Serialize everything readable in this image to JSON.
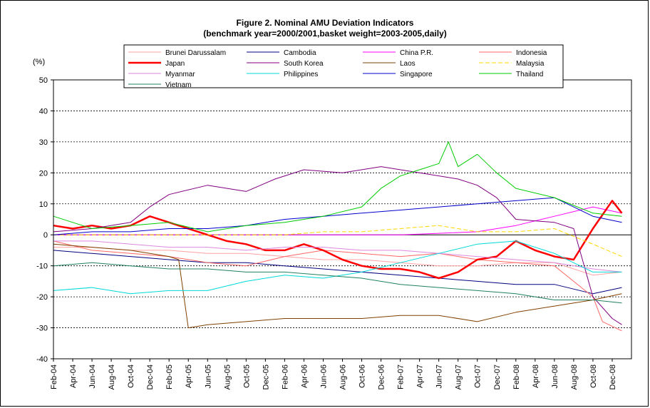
{
  "chart_data": {
    "type": "line",
    "title": "Figure 2. Nominal AMU Deviation Indicators",
    "subtitle": "(benchmark year=2000/2001,basket weight=2003-2005,daily)",
    "ylabel": "(%)",
    "xlabel": "",
    "ylim": [
      -40,
      50
    ],
    "yticks": [
      50,
      40,
      30,
      20,
      10,
      0,
      -10,
      -20,
      -30,
      -40
    ],
    "xlim": [
      "2004-02",
      "2009-02"
    ],
    "xticks": [
      "Feb-04",
      "Apr-04",
      "Jun-04",
      "Aug-04",
      "Oct-04",
      "Dec-04",
      "Feb-05",
      "Apr-05",
      "Jun-05",
      "Aug-05",
      "Oct-05",
      "Dec-05",
      "Feb-06",
      "Apr-06",
      "Jun-06",
      "Aug-06",
      "Oct-06",
      "Dec-06",
      "Feb-07",
      "Apr-07",
      "Jun-07",
      "Aug-07",
      "Oct-07",
      "Dec-07",
      "Feb-08",
      "Apr-08",
      "Jun-08",
      "Aug-08",
      "Oct-08",
      "Dec-08"
    ],
    "grid": "horizontal dotted",
    "legend_position": "top",
    "series": [
      {
        "name": "Brunei Darussalam",
        "color": "#ffa0a0",
        "width": 1,
        "dash": "",
        "x": [
          "2004-02",
          "2004-06",
          "2004-10",
          "2005-02",
          "2005-06",
          "2005-10",
          "2006-02",
          "2006-06",
          "2006-10",
          "2007-02",
          "2007-06",
          "2007-10",
          "2008-02",
          "2008-06",
          "2008-10",
          "2009-01"
        ],
        "y": [
          -4,
          -4,
          -5,
          -5,
          -6,
          -6,
          -7,
          -8,
          -8,
          -9,
          -10,
          -10,
          -9,
          -9,
          -13,
          -12
        ]
      },
      {
        "name": "Cambodia",
        "color": "#000080",
        "width": 1,
        "dash": "",
        "x": [
          "2004-02",
          "2004-06",
          "2004-10",
          "2005-02",
          "2005-06",
          "2005-10",
          "2006-02",
          "2006-06",
          "2006-10",
          "2007-02",
          "2007-06",
          "2007-10",
          "2008-02",
          "2008-06",
          "2008-10",
          "2009-01"
        ],
        "y": [
          -5,
          -6,
          -7,
          -8,
          -9,
          -9,
          -10,
          -11,
          -12,
          -13,
          -14,
          -15,
          -16,
          -16,
          -19,
          -17
        ]
      },
      {
        "name": "China P.R.",
        "color": "#ff00ff",
        "width": 1,
        "dash": "",
        "x": [
          "2004-02",
          "2004-06",
          "2004-10",
          "2005-02",
          "2005-06",
          "2005-10",
          "2006-02",
          "2006-06",
          "2006-10",
          "2007-02",
          "2007-06",
          "2007-10",
          "2008-02",
          "2008-06",
          "2008-10",
          "2009-01"
        ],
        "y": [
          0,
          0,
          0,
          0,
          0,
          0,
          0,
          0,
          0,
          0,
          0.5,
          1,
          3,
          6,
          9,
          7
        ]
      },
      {
        "name": "Indonesia",
        "color": "#ff6666",
        "width": 1,
        "dash": "",
        "x": [
          "2004-02",
          "2004-06",
          "2004-10",
          "2005-02",
          "2005-06",
          "2005-10",
          "2006-02",
          "2006-06",
          "2006-10",
          "2007-02",
          "2007-06",
          "2007-10",
          "2008-02",
          "2008-06",
          "2008-10",
          "2008-11",
          "2009-01"
        ],
        "y": [
          -2,
          -5,
          -6,
          -7,
          -9,
          -10,
          -7,
          -5,
          -6,
          -7,
          -6,
          -8,
          -9,
          -10,
          -20,
          -28,
          -31
        ]
      },
      {
        "name": "Japan",
        "color": "#ff0000",
        "width": 2.5,
        "dash": "",
        "x": [
          "2004-02",
          "2004-04",
          "2004-06",
          "2004-08",
          "2004-10",
          "2004-12",
          "2005-02",
          "2005-04",
          "2005-06",
          "2005-08",
          "2005-10",
          "2005-12",
          "2006-02",
          "2006-04",
          "2006-06",
          "2006-08",
          "2006-10",
          "2006-12",
          "2007-02",
          "2007-04",
          "2007-06",
          "2007-08",
          "2007-10",
          "2007-12",
          "2008-02",
          "2008-04",
          "2008-06",
          "2008-08",
          "2008-10",
          "2008-12",
          "2009-01"
        ],
        "y": [
          3,
          2,
          3,
          2,
          3,
          6,
          4,
          2,
          0,
          -2,
          -3,
          -5,
          -5,
          -3,
          -5,
          -8,
          -10,
          -11,
          -11,
          -12,
          -14,
          -12,
          -8,
          -7,
          -2,
          -5,
          -7,
          -8,
          2,
          11,
          7
        ]
      },
      {
        "name": "South Korea",
        "color": "#800080",
        "width": 1,
        "dash": "",
        "x": [
          "2004-02",
          "2004-06",
          "2004-10",
          "2004-12",
          "2005-02",
          "2005-06",
          "2005-10",
          "2006-01",
          "2006-04",
          "2006-08",
          "2006-12",
          "2007-04",
          "2007-08",
          "2007-10",
          "2007-12",
          "2008-02",
          "2008-06",
          "2008-08",
          "2008-10",
          "2008-12",
          "2009-01"
        ],
        "y": [
          1,
          2,
          4,
          9,
          13,
          16,
          14,
          18,
          21,
          20,
          22,
          20,
          18,
          16,
          12,
          5,
          4,
          2,
          -20,
          -27,
          -29
        ]
      },
      {
        "name": "Laos",
        "color": "#804000",
        "width": 1,
        "dash": "",
        "x": [
          "2004-02",
          "2004-06",
          "2004-10",
          "2005-02",
          "2005-03",
          "2005-04",
          "2005-06",
          "2005-10",
          "2006-02",
          "2006-06",
          "2006-10",
          "2007-02",
          "2007-06",
          "2007-10",
          "2008-02",
          "2008-06",
          "2008-10",
          "2009-01"
        ],
        "y": [
          -3,
          -4,
          -5,
          -7,
          -8,
          -30,
          -29,
          -28,
          -27,
          -27,
          -27,
          -26,
          -26,
          -28,
          -25,
          -23,
          -21,
          -19
        ]
      },
      {
        "name": "Malaysia",
        "color": "#ffd700",
        "width": 1,
        "dash": "6,3",
        "x": [
          "2004-02",
          "2004-06",
          "2004-10",
          "2005-02",
          "2005-06",
          "2005-10",
          "2006-02",
          "2006-06",
          "2006-10",
          "2007-02",
          "2007-06",
          "2007-10",
          "2008-02",
          "2008-06",
          "2008-10",
          "2009-01"
        ],
        "y": [
          0,
          0,
          0,
          0,
          0,
          0,
          0,
          1,
          1,
          2,
          3,
          1,
          1,
          2,
          -3,
          -7
        ]
      },
      {
        "name": "Myanmar",
        "color": "#dd88dd",
        "width": 1,
        "dash": "",
        "x": [
          "2004-02",
          "2004-06",
          "2004-10",
          "2005-02",
          "2005-06",
          "2005-10",
          "2006-02",
          "2006-06",
          "2006-10",
          "2007-02",
          "2007-06",
          "2007-10",
          "2008-02",
          "2008-06",
          "2008-10",
          "2009-01"
        ],
        "y": [
          -2,
          -2,
          -3,
          -4,
          -4,
          -5,
          -4,
          -4,
          -5,
          -5,
          -6,
          -7,
          -8,
          -9,
          -11,
          -12
        ]
      },
      {
        "name": "Philippines",
        "color": "#00d8d8",
        "width": 1,
        "dash": "",
        "x": [
          "2004-02",
          "2004-06",
          "2004-10",
          "2005-02",
          "2005-06",
          "2005-10",
          "2006-02",
          "2006-06",
          "2006-10",
          "2007-02",
          "2007-06",
          "2007-10",
          "2008-02",
          "2008-06",
          "2008-10",
          "2009-01"
        ],
        "y": [
          -18,
          -17,
          -19,
          -18,
          -18,
          -15,
          -13,
          -14,
          -12,
          -9,
          -6,
          -3,
          -2,
          -6,
          -12,
          -12
        ]
      },
      {
        "name": "Singapore",
        "color": "#0000cc",
        "width": 1,
        "dash": "",
        "x": [
          "2004-02",
          "2004-06",
          "2004-10",
          "2005-02",
          "2005-06",
          "2005-10",
          "2006-02",
          "2006-06",
          "2006-10",
          "2007-02",
          "2007-06",
          "2007-10",
          "2008-02",
          "2008-06",
          "2008-10",
          "2009-01"
        ],
        "y": [
          0,
          1,
          1,
          2,
          2,
          3,
          5,
          6,
          7,
          8,
          9,
          10,
          11,
          12,
          6,
          4
        ]
      },
      {
        "name": "Thailand",
        "color": "#00cc00",
        "width": 1,
        "dash": "",
        "x": [
          "2004-02",
          "2004-06",
          "2004-10",
          "2005-02",
          "2005-06",
          "2005-10",
          "2006-02",
          "2006-06",
          "2006-10",
          "2006-12",
          "2007-02",
          "2007-04",
          "2007-06",
          "2007-07",
          "2007-08",
          "2007-10",
          "2007-12",
          "2008-02",
          "2008-06",
          "2008-10",
          "2009-01"
        ],
        "y": [
          6,
          2,
          3,
          4,
          1,
          3,
          4,
          6,
          9,
          15,
          19,
          21,
          23,
          30,
          22,
          26,
          20,
          15,
          12,
          7,
          6
        ]
      },
      {
        "name": "Vietnam",
        "color": "#208060",
        "width": 1,
        "dash": "",
        "x": [
          "2004-02",
          "2004-06",
          "2004-10",
          "2005-02",
          "2005-06",
          "2005-10",
          "2006-02",
          "2006-06",
          "2006-10",
          "2007-02",
          "2007-06",
          "2007-10",
          "2008-02",
          "2008-06",
          "2008-10",
          "2009-01"
        ],
        "y": [
          -10,
          -9,
          -10,
          -11,
          -11,
          -12,
          -12,
          -13,
          -14,
          -16,
          -17,
          -18,
          -19,
          -21,
          -21,
          -22
        ]
      }
    ]
  }
}
